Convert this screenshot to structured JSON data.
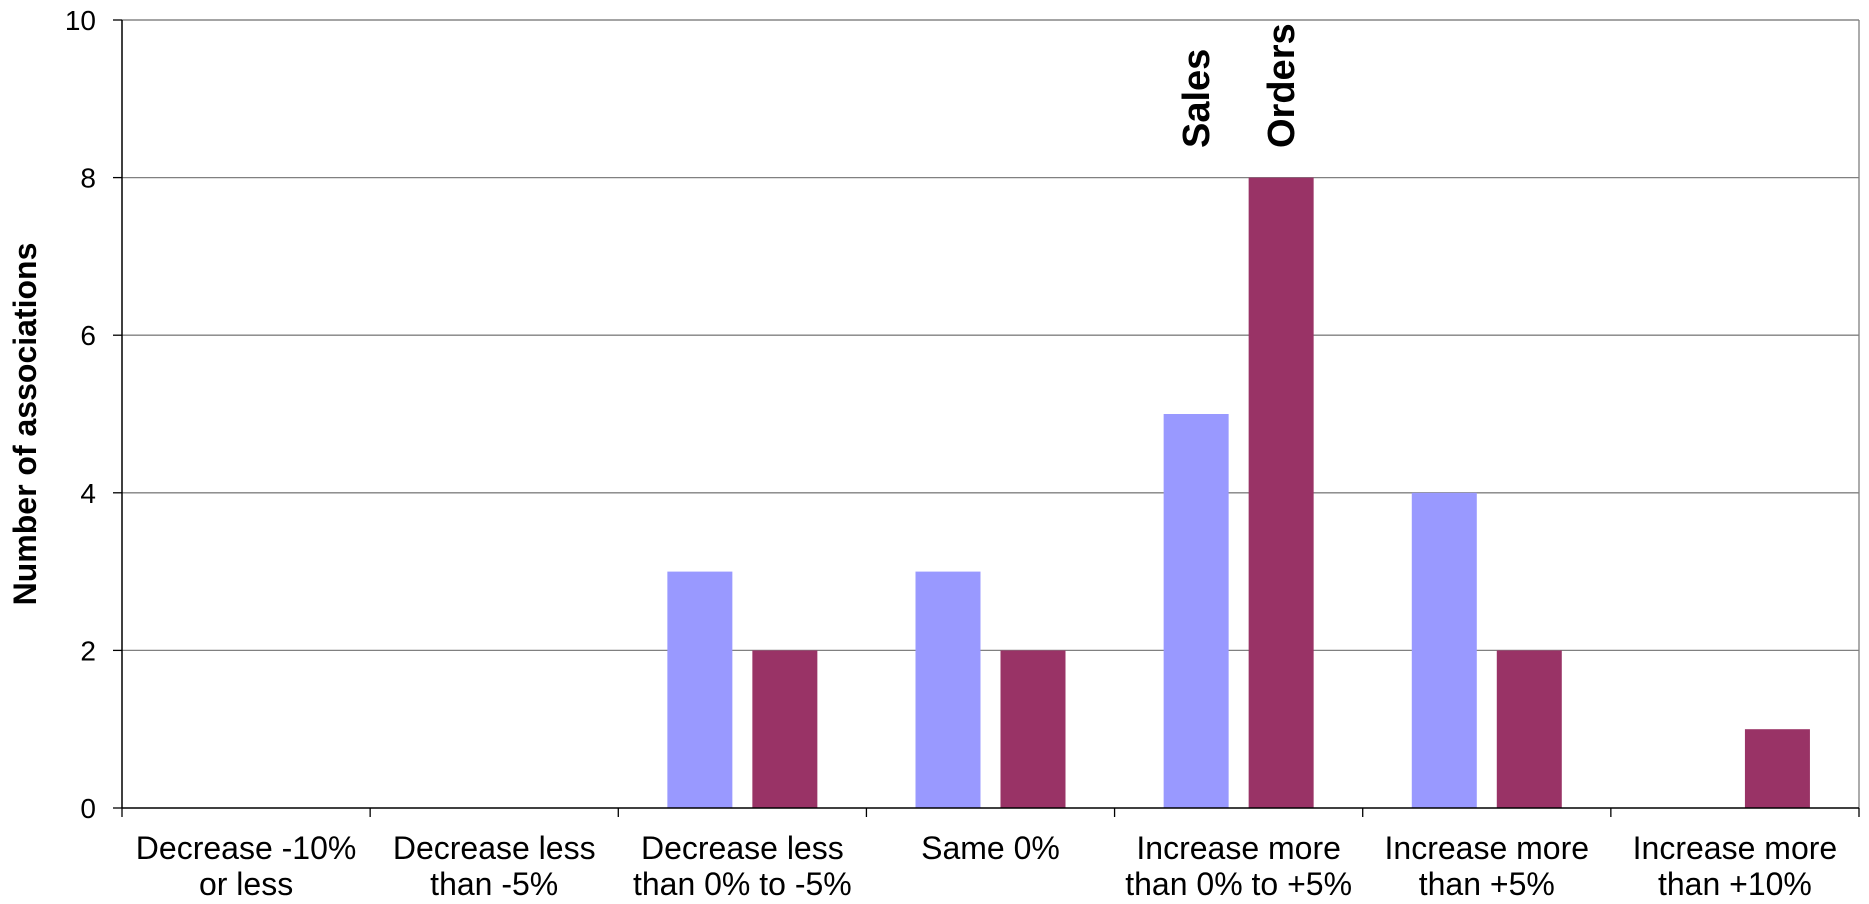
{
  "chart_data": {
    "type": "bar",
    "title": "",
    "xlabel": "",
    "ylabel": "Number of associations",
    "ylim": [
      0,
      10
    ],
    "yticks": [
      0,
      2,
      4,
      6,
      8,
      10
    ],
    "grid": true,
    "legend": "none",
    "categories": [
      [
        "Decrease -10%",
        "or less"
      ],
      [
        "Decrease less",
        "than -5%"
      ],
      [
        "Decrease less",
        "than 0% to -5%"
      ],
      [
        "Same 0%"
      ],
      [
        "Increase more",
        "than 0% to +5%"
      ],
      [
        "Increase more",
        "than +5%"
      ],
      [
        "Increase more",
        "than +10%"
      ]
    ],
    "series": [
      {
        "name": "Sales",
        "color": "#9999ff",
        "values": [
          0,
          0,
          3,
          3,
          5,
          4,
          0
        ]
      },
      {
        "name": "Orders",
        "color": "#993366",
        "values": [
          0,
          0,
          2,
          2,
          8,
          2,
          1
        ]
      }
    ],
    "series_label_category_index": 4
  }
}
